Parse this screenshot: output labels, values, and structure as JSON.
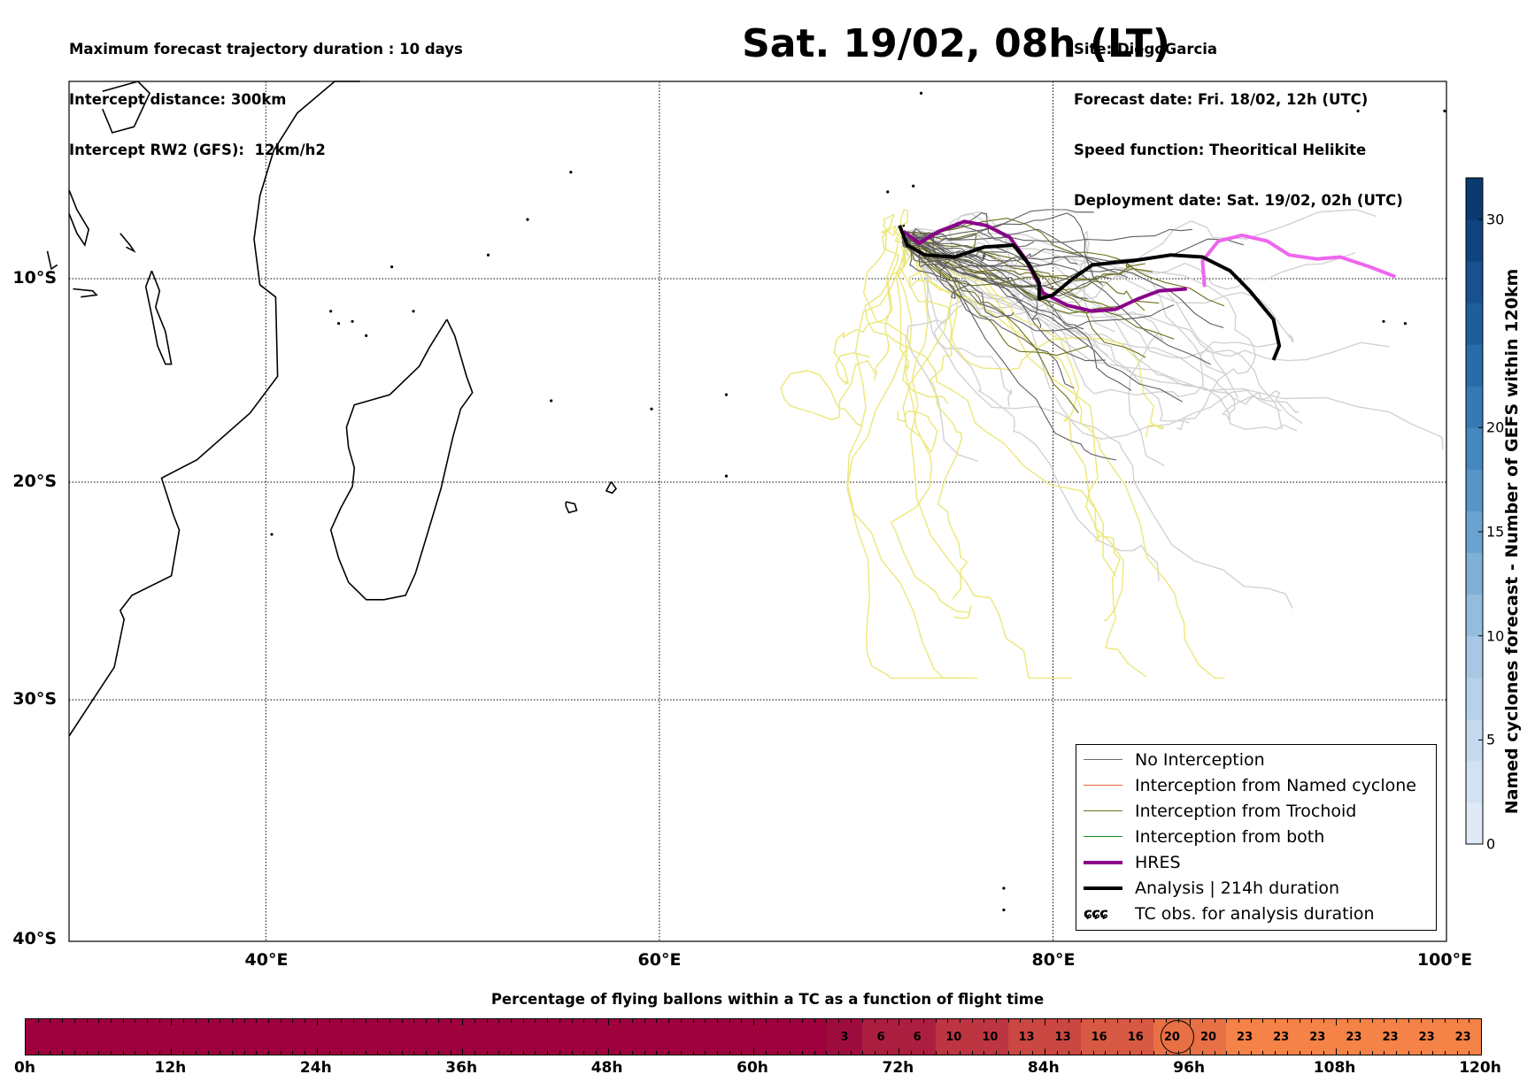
{
  "header": {
    "left_lines": [
      "Maximum forecast trajectory duration : 10 days",
      "Intercept distance: 300km",
      "Intercept RW2 (GFS):  12km/h2"
    ],
    "right_lines": [
      "Site: DiegoGarcia",
      "Forecast date: Fri. 18/02, 12h (UTC)",
      "Speed function: Theoritical Helikite",
      "Deployment date: Sat. 19/02, 02h (UTC)"
    ],
    "title": "Sat. 19/02, 08h (LT)"
  },
  "map": {
    "lon_range": [
      30,
      100
    ],
    "lat_range": [
      -40,
      1
    ],
    "lat_labels": [
      "10°S",
      "20°S",
      "30°S",
      "40°S"
    ],
    "lon_labels": [
      "40°E",
      "60°E",
      "80°E",
      "100°E"
    ],
    "grid": "dotted"
  },
  "legend": {
    "placement": "lower-right",
    "items": [
      {
        "label": "No Interception",
        "color": "#6e6e6e",
        "width": 1.2
      },
      {
        "label": "Interception from Named cyclone",
        "color": "#e8623a",
        "width": 1.2
      },
      {
        "label": "Interception from Trochoid",
        "color": "#6e6e1c",
        "width": 1.2
      },
      {
        "label": "Interception from both",
        "color": "#1c8a1c",
        "width": 1.2
      },
      {
        "label": "HRES",
        "color": "#8b008b",
        "width": 3.5
      },
      {
        "label": "Analysis | 214h duration",
        "color": "#000000",
        "width": 3.5
      }
    ],
    "tc_obs_symbol": "ɕɕɕ",
    "tc_obs_label": "TC obs. for analysis duration"
  },
  "colorbar": {
    "title": "Named cyclones forecast - Number of GEFS within 120km",
    "ticks": [
      "0",
      "5",
      "10",
      "15",
      "20",
      "30"
    ],
    "range": [
      0,
      32
    ],
    "colors": [
      "#dfeaf7",
      "#d2e2f2",
      "#c5daee",
      "#b6d1ea",
      "#a6c8e4",
      "#93bcdd",
      "#7fb0d6",
      "#6aa3cf",
      "#5795c7",
      "#4587be",
      "#3679b4",
      "#2a6ba9",
      "#1f5e9d",
      "#17518f",
      "#0f4480",
      "#0a3a6f"
    ]
  },
  "timeline": {
    "title": "Percentage of flying ballons within a TC as a function of flight time",
    "hours_max": 120,
    "labels": [
      "0h",
      "12h",
      "24h",
      "36h",
      "48h",
      "60h",
      "72h",
      "84h",
      "96h",
      "108h",
      "120h"
    ],
    "cells": [
      "3",
      "6",
      "6",
      "10",
      "10",
      "13",
      "13",
      "16",
      "16",
      "20",
      "20",
      "23",
      "23",
      "23",
      "23",
      "23",
      "23",
      "23"
    ],
    "base_color": "#9e013c",
    "highlight_hour": 95
  },
  "tracks": {
    "analysis": [
      [
        72.2,
        -7.3
      ],
      [
        72.6,
        -8.3
      ],
      [
        73.5,
        -8.8
      ],
      [
        75,
        -8.9
      ],
      [
        76.5,
        -8.4
      ],
      [
        78,
        -8.3
      ],
      [
        78.8,
        -9.3
      ],
      [
        79.3,
        -10.2
      ],
      [
        79.3,
        -11
      ],
      [
        80,
        -10.8
      ],
      [
        81,
        -10
      ],
      [
        82,
        -9.3
      ],
      [
        84,
        -9.1
      ],
      [
        86,
        -8.8
      ],
      [
        87.6,
        -8.9
      ],
      [
        89,
        -9.6
      ],
      [
        90,
        -10.6
      ],
      [
        91.2,
        -12
      ],
      [
        91.5,
        -13.3
      ],
      [
        91.2,
        -14
      ]
    ],
    "hres": [
      [
        72.4,
        -7.6
      ],
      [
        73.2,
        -8.2
      ],
      [
        74.2,
        -7.6
      ],
      [
        75.5,
        -7.1
      ],
      [
        76.6,
        -7.3
      ],
      [
        77.8,
        -7.9
      ],
      [
        78.6,
        -9
      ],
      [
        79.5,
        -10.7
      ],
      [
        80.7,
        -11.3
      ],
      [
        82,
        -11.6
      ],
      [
        83.2,
        -11.5
      ],
      [
        84.3,
        -11
      ],
      [
        85.4,
        -10.6
      ],
      [
        86.8,
        -10.5
      ]
    ],
    "hres_ext": [
      [
        87.7,
        -10.4
      ],
      [
        87.6,
        -9.1
      ],
      [
        88.4,
        -8.1
      ],
      [
        89.6,
        -7.8
      ],
      [
        90.9,
        -8.1
      ],
      [
        92,
        -8.8
      ],
      [
        93.4,
        -9
      ],
      [
        94.6,
        -8.9
      ],
      [
        96.1,
        -9.4
      ],
      [
        97.4,
        -9.9
      ]
    ]
  }
}
